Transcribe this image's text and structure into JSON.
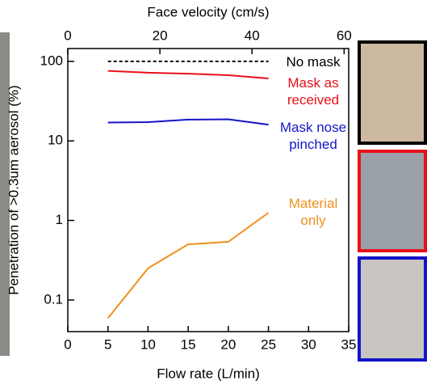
{
  "chart_data": {
    "type": "line",
    "xlabel": "Flow rate (L/min)",
    "x2label": "Face velocity (cm/s)",
    "ylabel": "Penetration of >0.3um aerosol (%)",
    "x": [
      5,
      10,
      15,
      20,
      25
    ],
    "xlim": [
      0,
      35
    ],
    "xticks": [
      0,
      5,
      10,
      15,
      20,
      25,
      30,
      35
    ],
    "x2lim": [
      0,
      61
    ],
    "x2ticks": [
      0,
      20,
      40,
      60
    ],
    "yscale": "log",
    "ylim": [
      0.04,
      145
    ],
    "yticks": [
      0.1,
      1,
      10,
      100
    ],
    "series": [
      {
        "name": "No mask",
        "color": "#000000",
        "style": "dashed",
        "values": [
          100,
          100,
          100,
          100,
          100
        ]
      },
      {
        "name": "Mask as received",
        "color": "#e8101a",
        "style": "solid",
        "values": [
          76,
          72,
          70,
          67,
          61
        ]
      },
      {
        "name": "Mask nose pinched",
        "color": "#1414c8",
        "style": "solid",
        "values": [
          17,
          17.2,
          18.5,
          18.7,
          16
        ]
      },
      {
        "name": "Material only",
        "color": "#f0901e",
        "style": "solid",
        "values": [
          0.059,
          0.25,
          0.5,
          0.54,
          1.25
        ]
      }
    ]
  }
}
